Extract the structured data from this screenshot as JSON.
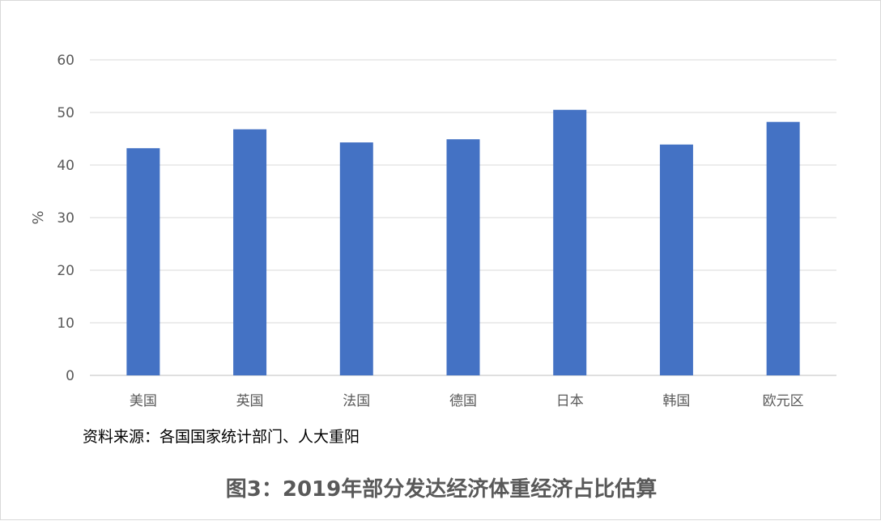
{
  "chart_data": {
    "type": "bar",
    "categories": [
      "美国",
      "英国",
      "法国",
      "德国",
      "日本",
      "韩国",
      "欧元区"
    ],
    "series": [
      {
        "values": [
          43.2,
          46.8,
          44.3,
          44.9,
          50.5,
          43.9,
          48.2
        ]
      }
    ],
    "ylabel": "%",
    "ylim": [
      0,
      60
    ],
    "yticks": [
      0,
      10,
      20,
      30,
      40,
      50,
      60
    ],
    "grid": true,
    "bar_color": "#4472C4",
    "grid_color": "#D9D9D9",
    "axis_color": "#BFBFBF",
    "tick_color": "#595959"
  },
  "source_note": "资料来源：各国国家统计部门、人大重阳",
  "caption": "图3：2019年部分发达经济体重经济占比估算"
}
